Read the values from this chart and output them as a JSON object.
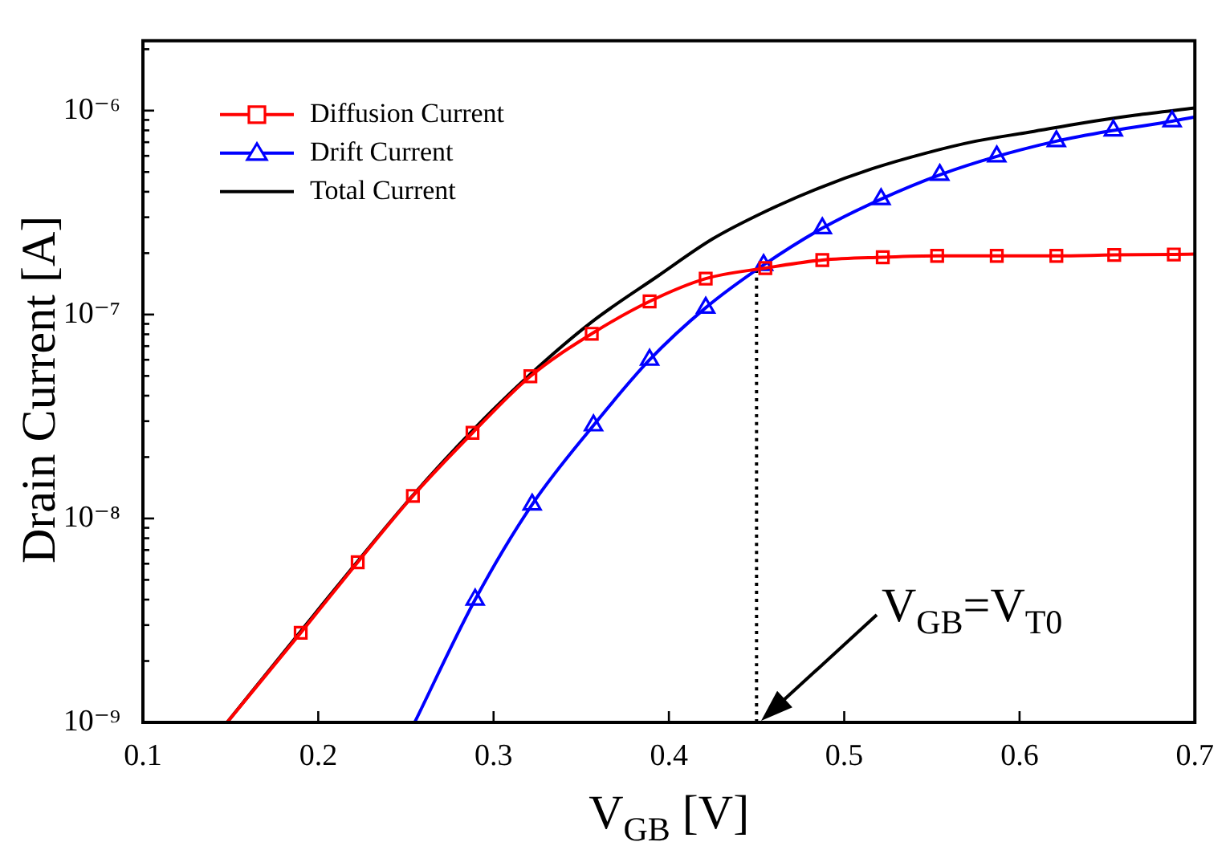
{
  "chart_data": {
    "type": "line",
    "xlabel": "V$_{GB}$ [V]",
    "ylabel": "Drain Current [A]",
    "log": "y",
    "legend": "top left",
    "xlim": [
      0.1,
      0.7
    ],
    "xticks": [
      0.1,
      0.2,
      0.3,
      0.4,
      0.5,
      0.6,
      0.7
    ],
    "ylim": [
      1e-09,
      2.2e-06
    ],
    "yticks": [
      {
        "value": 1e-09,
        "label": "10⁻⁹"
      },
      {
        "value": 2e-09,
        "label": null
      },
      {
        "value": 3e-09,
        "label": null
      },
      {
        "value": 4e-09,
        "label": null
      },
      {
        "value": 5e-09,
        "label": null
      },
      {
        "value": 6e-09,
        "label": null
      },
      {
        "value": 7e-09,
        "label": null
      },
      {
        "value": 8e-09,
        "label": null
      },
      {
        "value": 9e-09,
        "label": null
      },
      {
        "value": 1e-08,
        "label": "10⁻⁸"
      },
      {
        "value": 2e-08,
        "label": null
      },
      {
        "value": 3e-08,
        "label": null
      },
      {
        "value": 4e-08,
        "label": null
      },
      {
        "value": 5e-08,
        "label": null
      },
      {
        "value": 6e-08,
        "label": null
      },
      {
        "value": 7e-08,
        "label": null
      },
      {
        "value": 8e-08,
        "label": null
      },
      {
        "value": 9e-08,
        "label": null
      },
      {
        "value": 1e-07,
        "label": "10⁻⁷"
      },
      {
        "value": 2e-07,
        "label": null
      },
      {
        "value": 3e-07,
        "label": null
      },
      {
        "value": 4e-07,
        "label": null
      },
      {
        "value": 5e-07,
        "label": null
      },
      {
        "value": 6e-07,
        "label": null
      },
      {
        "value": 7e-07,
        "label": null
      },
      {
        "value": 8e-07,
        "label": null
      },
      {
        "value": 9e-07,
        "label": null
      },
      {
        "value": 1e-06,
        "label": "10⁻⁶"
      },
      {
        "value": 2e-06,
        "label": null
      }
    ],
    "series": [
      {
        "name": "Diffusion Current",
        "color": "#ff0000",
        "marker": "square",
        "x": [
          0.148,
          0.19,
          0.2225,
          0.254,
          0.288,
          0.321,
          0.356,
          0.389,
          0.421,
          0.455,
          0.4875,
          0.522,
          0.553,
          0.587,
          0.621,
          0.654,
          0.688,
          0.7
        ],
        "values": [
          1e-09,
          2.75e-09,
          6.1e-09,
          1.29e-08,
          2.63e-08,
          4.98e-08,
          8.05e-08,
          1.16e-07,
          1.5e-07,
          1.69e-07,
          1.85e-07,
          1.91e-07,
          1.94e-07,
          1.94e-07,
          1.94e-07,
          1.96e-07,
          1.97e-07,
          1.98e-07
        ]
      },
      {
        "name": "Drift Current",
        "color": "#0000ff",
        "marker": "triangle",
        "x": [
          0.255,
          0.2895,
          0.322,
          0.357,
          0.389,
          0.421,
          0.454,
          0.4875,
          0.521,
          0.5545,
          0.587,
          0.621,
          0.6535,
          0.687,
          0.7
        ],
        "values": [
          1e-09,
          4e-09,
          1.17e-08,
          2.86e-08,
          6e-08,
          1.08e-07,
          1.75e-07,
          2.65e-07,
          3.68e-07,
          4.84e-07,
          5.96e-07,
          7.08e-07,
          7.99e-07,
          8.87e-07,
          9.3e-07
        ]
      },
      {
        "name": "Total Current",
        "color": "#000000",
        "marker": "none",
        "x": [
          0.148,
          0.19,
          0.254,
          0.288,
          0.321,
          0.356,
          0.394,
          0.425,
          0.455,
          0.485,
          0.516,
          0.546,
          0.575,
          0.606,
          0.636,
          0.666,
          0.7
        ],
        "values": [
          1e-09,
          2.8e-09,
          1.3e-08,
          2.7e-08,
          5.1e-08,
          9.2e-08,
          1.55e-07,
          2.35e-07,
          3.2e-07,
          4.15e-07,
          5.19e-07,
          6.17e-07,
          7.08e-07,
          7.85e-07,
          8.7e-07,
          9.5e-07,
          1.03e-06
        ]
      },
      {
        "color": "#000000",
        "marker": "none",
        "line_style": "dotted",
        "x": [
          0.45,
          0.45
        ],
        "values": [
          1e-09,
          1.7e-07
        ]
      }
    ],
    "annotations": [
      "V$_{GB}$=V$_{T0}$"
    ]
  }
}
